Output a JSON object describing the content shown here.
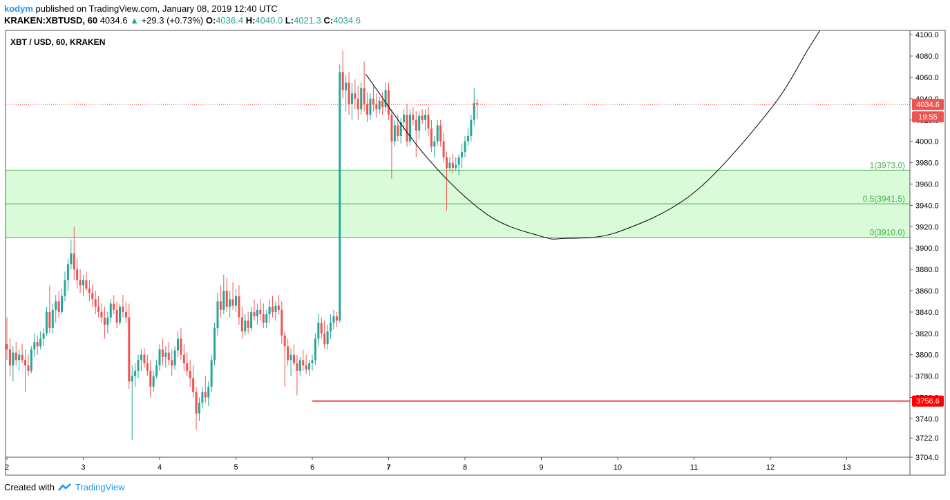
{
  "header": {
    "author": "kodym",
    "published_text": "published on TradingView.com, January 08, 2019 12:40 UTC",
    "symbol": "KRAKEN:XBTUSD, 60",
    "last": "4034.6",
    "change": "+29.3 (+0.73%)",
    "ohlc": [
      {
        "k": "O:",
        "v": "4036.4"
      },
      {
        "k": "H:",
        "v": "4040.0"
      },
      {
        "k": "L:",
        "v": "4021.3"
      },
      {
        "k": "C:",
        "v": "4034.6"
      }
    ]
  },
  "legend_title": "XBT / USD, 60, KRAKEN",
  "footer": {
    "created": "Created with",
    "brand": "TradingView"
  },
  "colors": {
    "up": "#26a69a",
    "down": "#ef5350",
    "zone": "#d9fbd9",
    "zoneLine": "#4caf50",
    "support": "#ff0000",
    "price": "#ef5350"
  },
  "chart_data": {
    "type": "candlestick",
    "title": "XBT / USD, 60, KRAKEN",
    "x_ticks": [
      "2",
      "3",
      "4",
      "5",
      "6",
      "7",
      "8",
      "9",
      "10",
      "11",
      "12",
      "13"
    ],
    "y_ticks": [
      "4100.0",
      "4080.0",
      "4060.0",
      "4040.0",
      "4020.0",
      "4000.0",
      "3980.0",
      "3960.0",
      "3940.0",
      "3920.0",
      "3900.0",
      "3880.0",
      "3860.0",
      "3840.0",
      "3820.0",
      "3800.0",
      "3780.0",
      "3760.0",
      "3740.0",
      "3722.0",
      "3704.0"
    ],
    "ylim": [
      3704,
      4104
    ],
    "last_price": "4034.6",
    "timer": "19:55",
    "support": {
      "value": 3756.6,
      "label": "3756.6",
      "from_day": 6.0
    },
    "fib_levels": [
      {
        "label": "1(3973.0)",
        "value": 3973.0
      },
      {
        "label": "0.5(3941.5)",
        "value": 3941.5
      },
      {
        "label": "0(3910.0)",
        "value": 3910.0
      }
    ],
    "arc": {
      "points": [
        [
          6.7,
          4063
        ],
        [
          7.5,
          3985
        ],
        [
          8.3,
          3931
        ],
        [
          9.0,
          3911
        ],
        [
          9.3,
          3909
        ],
        [
          10.0,
          3915
        ],
        [
          11.0,
          3952
        ],
        [
          12.0,
          4030
        ],
        [
          12.5,
          4087
        ],
        [
          12.65,
          4104
        ]
      ]
    },
    "candles": [
      [
        2.0,
        3810,
        3835,
        3795,
        3805
      ],
      [
        2.04,
        3805,
        3815,
        3780,
        3790
      ],
      [
        2.08,
        3790,
        3808,
        3775,
        3802
      ],
      [
        2.12,
        3802,
        3812,
        3790,
        3795
      ],
      [
        2.16,
        3795,
        3805,
        3785,
        3800
      ],
      [
        2.2,
        3800,
        3810,
        3792,
        3795
      ],
      [
        2.24,
        3795,
        3805,
        3765,
        3790
      ],
      [
        2.28,
        3790,
        3800,
        3780,
        3785
      ],
      [
        2.32,
        3785,
        3808,
        3783,
        3805
      ],
      [
        2.36,
        3805,
        3820,
        3798,
        3812
      ],
      [
        2.4,
        3812,
        3818,
        3800,
        3808
      ],
      [
        2.44,
        3808,
        3822,
        3805,
        3815
      ],
      [
        2.48,
        3815,
        3825,
        3808,
        3820
      ],
      [
        2.52,
        3820,
        3845,
        3818,
        3840
      ],
      [
        2.56,
        3840,
        3865,
        3820,
        3825
      ],
      [
        2.6,
        3825,
        3848,
        3820,
        3842
      ],
      [
        2.64,
        3842,
        3856,
        3830,
        3850
      ],
      [
        2.68,
        3850,
        3860,
        3835,
        3840
      ],
      [
        2.72,
        3840,
        3862,
        3838,
        3855
      ],
      [
        2.76,
        3855,
        3878,
        3850,
        3870
      ],
      [
        2.8,
        3870,
        3890,
        3860,
        3885
      ],
      [
        2.84,
        3885,
        3908,
        3880,
        3895
      ],
      [
        2.88,
        3895,
        3920,
        3870,
        3880
      ],
      [
        2.92,
        3880,
        3890,
        3862,
        3870
      ],
      [
        2.96,
        3870,
        3880,
        3858,
        3865
      ],
      [
        3.0,
        3865,
        3875,
        3855,
        3870
      ],
      [
        3.04,
        3870,
        3878,
        3860,
        3862
      ],
      [
        3.08,
        3862,
        3870,
        3850,
        3858
      ],
      [
        3.12,
        3858,
        3866,
        3845,
        3852
      ],
      [
        3.16,
        3852,
        3860,
        3838,
        3845
      ],
      [
        3.2,
        3845,
        3855,
        3835,
        3840
      ],
      [
        3.24,
        3840,
        3848,
        3830,
        3835
      ],
      [
        3.28,
        3835,
        3845,
        3815,
        3828
      ],
      [
        3.32,
        3828,
        3840,
        3820,
        3835
      ],
      [
        3.36,
        3835,
        3852,
        3830,
        3848
      ],
      [
        3.4,
        3848,
        3856,
        3838,
        3842
      ],
      [
        3.44,
        3842,
        3850,
        3825,
        3830
      ],
      [
        3.48,
        3830,
        3848,
        3828,
        3845
      ],
      [
        3.52,
        3845,
        3856,
        3835,
        3840
      ],
      [
        3.56,
        3840,
        3850,
        3830,
        3835
      ],
      [
        3.6,
        3835,
        3848,
        3768,
        3775
      ],
      [
        3.64,
        3775,
        3790,
        3720,
        3780
      ],
      [
        3.68,
        3780,
        3792,
        3770,
        3785
      ],
      [
        3.72,
        3785,
        3800,
        3778,
        3795
      ],
      [
        3.76,
        3795,
        3805,
        3785,
        3800
      ],
      [
        3.8,
        3800,
        3806,
        3788,
        3792
      ],
      [
        3.84,
        3792,
        3800,
        3780,
        3785
      ],
      [
        3.88,
        3785,
        3795,
        3760,
        3770
      ],
      [
        3.92,
        3770,
        3785,
        3765,
        3780
      ],
      [
        3.96,
        3780,
        3795,
        3778,
        3790
      ],
      [
        4.0,
        3790,
        3810,
        3785,
        3805
      ],
      [
        4.04,
        3805,
        3815,
        3790,
        3798
      ],
      [
        4.08,
        3798,
        3808,
        3788,
        3802
      ],
      [
        4.12,
        3802,
        3812,
        3790,
        3795
      ],
      [
        4.16,
        3795,
        3805,
        3780,
        3790
      ],
      [
        4.2,
        3790,
        3808,
        3786,
        3804
      ],
      [
        4.24,
        3804,
        3822,
        3798,
        3815
      ],
      [
        4.28,
        3815,
        3825,
        3795,
        3800
      ],
      [
        4.32,
        3800,
        3810,
        3785,
        3792
      ],
      [
        4.36,
        3792,
        3802,
        3780,
        3785
      ],
      [
        4.4,
        3785,
        3795,
        3770,
        3778
      ],
      [
        4.44,
        3778,
        3790,
        3760,
        3765
      ],
      [
        4.48,
        3765,
        3770,
        3730,
        3745
      ],
      [
        4.52,
        3745,
        3760,
        3738,
        3755
      ],
      [
        4.56,
        3755,
        3770,
        3750,
        3765
      ],
      [
        4.6,
        3765,
        3780,
        3755,
        3760
      ],
      [
        4.64,
        3760,
        3775,
        3752,
        3770
      ],
      [
        4.68,
        3770,
        3800,
        3765,
        3795
      ],
      [
        4.72,
        3795,
        3830,
        3790,
        3825
      ],
      [
        4.76,
        3825,
        3858,
        3818,
        3850
      ],
      [
        4.8,
        3850,
        3865,
        3835,
        3842
      ],
      [
        4.84,
        3842,
        3875,
        3838,
        3860
      ],
      [
        4.88,
        3860,
        3872,
        3840,
        3845
      ],
      [
        4.92,
        3845,
        3860,
        3835,
        3852
      ],
      [
        4.96,
        3852,
        3868,
        3842,
        3846
      ],
      [
        5.0,
        3846,
        3862,
        3840,
        3855
      ],
      [
        5.04,
        3855,
        3865,
        3828,
        3835
      ],
      [
        5.08,
        3835,
        3845,
        3815,
        3822
      ],
      [
        5.12,
        3822,
        3838,
        3818,
        3832
      ],
      [
        5.16,
        3832,
        3840,
        3820,
        3825
      ],
      [
        5.2,
        3825,
        3845,
        3822,
        3840
      ],
      [
        5.24,
        3840,
        3852,
        3832,
        3836
      ],
      [
        5.28,
        3836,
        3848,
        3828,
        3842
      ],
      [
        5.32,
        3842,
        3852,
        3832,
        3838
      ],
      [
        5.36,
        3838,
        3848,
        3825,
        3830
      ],
      [
        5.4,
        3830,
        3842,
        3825,
        3838
      ],
      [
        5.44,
        3838,
        3852,
        3830,
        3845
      ],
      [
        5.48,
        3845,
        3855,
        3835,
        3840
      ],
      [
        5.52,
        3840,
        3850,
        3832,
        3846
      ],
      [
        5.56,
        3846,
        3856,
        3838,
        3842
      ],
      [
        5.6,
        3842,
        3850,
        3810,
        3818
      ],
      [
        5.64,
        3818,
        3822,
        3770,
        3808
      ],
      [
        5.68,
        3808,
        3815,
        3790,
        3795
      ],
      [
        5.72,
        3795,
        3806,
        3780,
        3800
      ],
      [
        5.76,
        3800,
        3810,
        3790,
        3792
      ],
      [
        5.8,
        3792,
        3800,
        3762,
        3785
      ],
      [
        5.84,
        3785,
        3798,
        3780,
        3795
      ],
      [
        5.88,
        3795,
        3805,
        3785,
        3790
      ],
      [
        5.92,
        3790,
        3800,
        3782,
        3786
      ],
      [
        5.96,
        3786,
        3795,
        3780,
        3792
      ],
      [
        6.0,
        3792,
        3800,
        3785,
        3795
      ],
      [
        6.04,
        3795,
        3820,
        3790,
        3815
      ],
      [
        6.08,
        3815,
        3838,
        3808,
        3830
      ],
      [
        6.12,
        3830,
        3835,
        3815,
        3820
      ],
      [
        6.16,
        3820,
        3832,
        3806,
        3810
      ],
      [
        6.2,
        3810,
        3828,
        3805,
        3822
      ],
      [
        6.24,
        3822,
        3838,
        3815,
        3830
      ],
      [
        6.28,
        3830,
        3842,
        3824,
        3836
      ],
      [
        6.32,
        3836,
        3840,
        3826,
        3832
      ],
      [
        6.36,
        3832,
        4072,
        3830,
        4065
      ],
      [
        6.4,
        4065,
        4085,
        4040,
        4048
      ],
      [
        6.44,
        4048,
        4062,
        4028,
        4055
      ],
      [
        6.48,
        4055,
        4065,
        4025,
        4035
      ],
      [
        6.52,
        4035,
        4055,
        4020,
        4045
      ],
      [
        6.56,
        4045,
        4058,
        4030,
        4040
      ],
      [
        6.6,
        4040,
        4052,
        4020,
        4030
      ],
      [
        6.64,
        4030,
        4055,
        4025,
        4050
      ],
      [
        6.68,
        4050,
        4075,
        4028,
        4035
      ],
      [
        6.72,
        4035,
        4046,
        4018,
        4025
      ],
      [
        6.76,
        4025,
        4045,
        4020,
        4040
      ],
      [
        6.8,
        4040,
        4052,
        4028,
        4035
      ],
      [
        6.84,
        4035,
        4045,
        4022,
        4030
      ],
      [
        6.88,
        4030,
        4042,
        4026,
        4038
      ],
      [
        6.92,
        4038,
        4046,
        4025,
        4032
      ],
      [
        6.96,
        4032,
        4055,
        4028,
        4048
      ],
      [
        7.0,
        4048,
        4055,
        4020,
        4025
      ],
      [
        7.04,
        4025,
        4030,
        3965,
        4000
      ],
      [
        7.08,
        4000,
        4020,
        3995,
        4015
      ],
      [
        7.12,
        4015,
        4025,
        4000,
        4005
      ],
      [
        7.16,
        4005,
        4022,
        3998,
        4018
      ],
      [
        7.2,
        4018,
        4030,
        4010,
        4025
      ],
      [
        7.24,
        4025,
        4035,
        3995,
        4000
      ],
      [
        7.28,
        4000,
        4030,
        3996,
        4025
      ],
      [
        7.32,
        4025,
        4032,
        4015,
        4020
      ],
      [
        7.36,
        4020,
        4028,
        3985,
        4010
      ],
      [
        7.4,
        4010,
        4028,
        4002,
        4024
      ],
      [
        7.44,
        4024,
        4030,
        4016,
        4020
      ],
      [
        7.48,
        4020,
        4030,
        4010,
        4025
      ],
      [
        7.52,
        4025,
        4032,
        4005,
        4012
      ],
      [
        7.56,
        4012,
        4020,
        3990,
        3995
      ],
      [
        7.6,
        3995,
        4005,
        3985,
        4000
      ],
      [
        7.64,
        4000,
        4020,
        3996,
        4015
      ],
      [
        7.68,
        4015,
        4020,
        3995,
        4000
      ],
      [
        7.72,
        4000,
        4008,
        3980,
        3985
      ],
      [
        7.76,
        3985,
        3990,
        3935,
        3975
      ],
      [
        7.8,
        3975,
        3985,
        3972,
        3980
      ],
      [
        7.84,
        3980,
        3988,
        3970,
        3975
      ],
      [
        7.88,
        3975,
        3985,
        3972,
        3978
      ],
      [
        7.92,
        3978,
        3988,
        3968,
        3985
      ],
      [
        7.96,
        3985,
        3998,
        3975,
        3990
      ],
      [
        8.0,
        3990,
        4005,
        3985,
        4000
      ],
      [
        8.04,
        4000,
        4012,
        3996,
        4005
      ],
      [
        8.08,
        4005,
        4025,
        4000,
        4020
      ],
      [
        8.12,
        4020,
        4050,
        4015,
        4036
      ],
      [
        8.16,
        4036,
        4040,
        4021,
        4035
      ]
    ]
  }
}
